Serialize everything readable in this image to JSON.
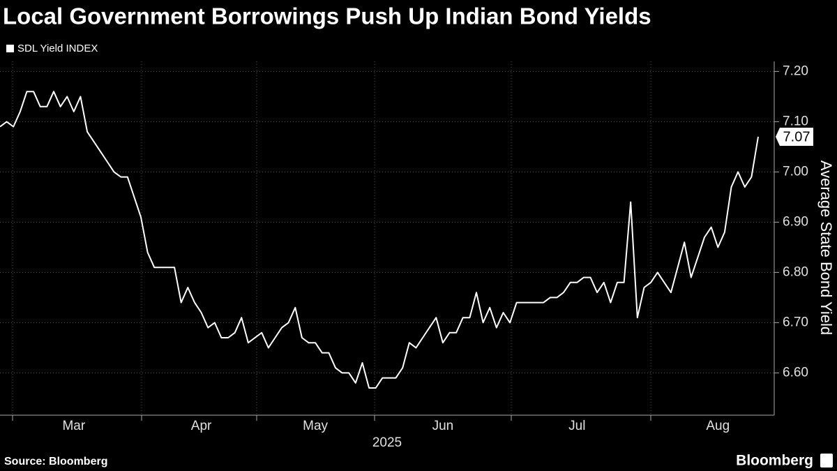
{
  "chart_data": {
    "type": "line",
    "title": "Local Government Borrowings Push Up Indian Bond Yields",
    "source": "Source: Bloomberg",
    "logo": "Bloomberg",
    "x_label": "2025",
    "y_label": "Average State Bond Yield",
    "categories": [
      null,
      null,
      null,
      null,
      null,
      null,
      null,
      null,
      null,
      null,
      null,
      "Mar",
      null,
      null,
      null,
      null,
      null,
      null,
      null,
      null,
      null,
      null,
      null,
      null,
      null,
      null,
      null,
      null,
      null,
      null,
      "Apr",
      null,
      null,
      null,
      null,
      null,
      null,
      null,
      null,
      null,
      null,
      null,
      null,
      null,
      null,
      null,
      null,
      "May",
      null,
      null,
      null,
      null,
      null,
      null,
      null,
      null,
      null,
      null,
      null,
      null,
      null,
      null,
      null,
      null,
      null,
      null,
      "Jun",
      null,
      null,
      null,
      null,
      null,
      null,
      null,
      null,
      null,
      null,
      null,
      null,
      null,
      null,
      null,
      null,
      null,
      null,
      null,
      "Jul",
      null,
      null,
      null,
      null,
      null,
      null,
      null,
      null,
      null,
      null,
      null,
      null,
      null,
      null,
      null,
      null,
      null,
      null,
      null,
      null,
      "Aug",
      null,
      null,
      null,
      null,
      null,
      null
    ],
    "series": [
      {
        "name": "SDL Yield INDEX",
        "color": "#ffffff",
        "values": [
          7.09,
          7.1,
          7.09,
          7.12,
          7.16,
          7.16,
          7.13,
          7.13,
          7.16,
          7.13,
          7.15,
          7.12,
          7.15,
          7.08,
          7.06,
          7.04,
          7.02,
          7.0,
          6.99,
          6.99,
          6.95,
          6.91,
          6.84,
          6.81,
          6.81,
          6.81,
          6.81,
          6.74,
          6.77,
          6.74,
          6.72,
          6.69,
          6.7,
          6.67,
          6.67,
          6.68,
          6.71,
          6.66,
          6.67,
          6.68,
          6.65,
          6.67,
          6.69,
          6.7,
          6.73,
          6.67,
          6.66,
          6.66,
          6.64,
          6.64,
          6.61,
          6.6,
          6.6,
          6.58,
          6.62,
          6.57,
          6.57,
          6.59,
          6.59,
          6.59,
          6.61,
          6.66,
          6.65,
          6.67,
          6.69,
          6.71,
          6.66,
          6.68,
          6.68,
          6.71,
          6.71,
          6.76,
          6.7,
          6.73,
          6.69,
          6.72,
          6.7,
          6.74,
          6.74,
          6.74,
          6.74,
          6.74,
          6.75,
          6.75,
          6.76,
          6.78,
          6.78,
          6.79,
          6.79,
          6.76,
          6.78,
          6.74,
          6.78,
          6.78,
          6.94,
          6.71,
          6.77,
          6.78,
          6.8,
          6.78,
          6.76,
          6.81,
          6.86,
          6.79,
          6.83,
          6.87,
          6.89,
          6.85,
          6.88,
          6.97,
          7.0,
          6.97,
          6.99,
          7.07
        ]
      }
    ],
    "ylim": [
      6.52,
      7.22
    ],
    "yticks": [
      {
        "value": 6.6,
        "label": "6.60"
      },
      {
        "value": 6.7,
        "label": "6.70"
      },
      {
        "value": 6.8,
        "label": "6.80"
      },
      {
        "value": 6.9,
        "label": "6.90"
      },
      {
        "value": 7.0,
        "label": "7.00"
      },
      {
        "value": 7.1,
        "label": "7.10"
      },
      {
        "value": 7.2,
        "label": "7.20"
      }
    ],
    "grid": true,
    "legend": "top-left"
  }
}
